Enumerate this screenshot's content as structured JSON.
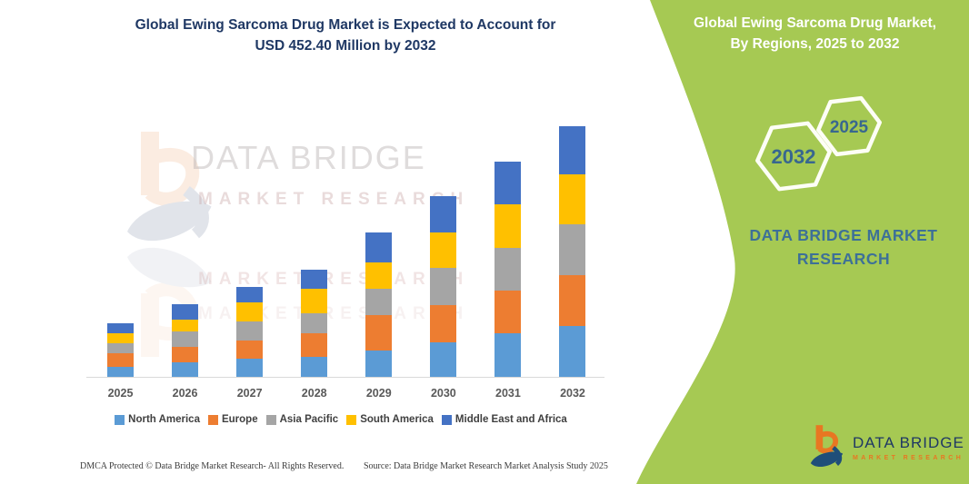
{
  "main": {
    "title_line1": "Global Ewing Sarcoma Drug Market is Expected to Account for",
    "title_line2": "USD 452.40 Million by 2032",
    "footer_left": "DMCA Protected © Data Bridge Market Research- All Rights Reserved.",
    "footer_right": "Source: Data Bridge Market Research Market Analysis Study 2025"
  },
  "watermark": {
    "line1": "DATA BRIDGE",
    "line2": "MARKET RESEARCH",
    "reflection1": "MARKET RESEARCH",
    "reflection2": "MARKET RESEARCH"
  },
  "chart_data": {
    "type": "bar",
    "stacked": true,
    "title": "Global Ewing Sarcoma Drug Market is Expected to Account for USD 452.40 Million by 2032",
    "unit": "USD Million",
    "xlabel": "",
    "ylabel": "",
    "ylim": [
      0,
      460
    ],
    "grid": false,
    "legend_position": "bottom",
    "categories": [
      "2025",
      "2026",
      "2027",
      "2028",
      "2029",
      "2030",
      "2031",
      "2032"
    ],
    "series": [
      {
        "name": "North America",
        "color": "#5B9BD5",
        "values": [
          18.0,
          25.8,
          32.8,
          35.6,
          47.6,
          62.9,
          78.3,
          91.4
        ]
      },
      {
        "name": "Europe",
        "color": "#ED7D31",
        "values": [
          24.1,
          27.9,
          32.8,
          42.7,
          63.5,
          66.8,
          77.6,
          93.0
        ]
      },
      {
        "name": "Asia Pacific",
        "color": "#A5A5A5",
        "values": [
          18.0,
          27.9,
          34.5,
          36.6,
          47.6,
          67.3,
          77.6,
          90.7
        ]
      },
      {
        "name": "South America",
        "color": "#FFC000",
        "values": [
          18.0,
          22.3,
          34.0,
          43.8,
          47.6,
          64.0,
          78.3,
          89.8
        ]
      },
      {
        "name": "Middle East and Africa",
        "color": "#4472C4",
        "values": [
          18.5,
          26.9,
          28.4,
          35.6,
          54.6,
          64.5,
          77.6,
          87.5
        ]
      }
    ],
    "totals": [
      96.6,
      130.8,
      162.5,
      194.3,
      260.9,
      325.5,
      389.4,
      452.4
    ]
  },
  "panel": {
    "bg_color": "#A6C953",
    "title_line1": "Global Ewing Sarcoma Drug Market,",
    "title_line2": "By Regions, 2025 to 2032",
    "hex_left_label": "2032",
    "hex_right_label": "2025",
    "brand_line1": "DATA BRIDGE MARKET",
    "brand_line2": "RESEARCH",
    "logo_name": "DATA BRIDGE",
    "logo_sub": "MARKET RESEARCH"
  }
}
